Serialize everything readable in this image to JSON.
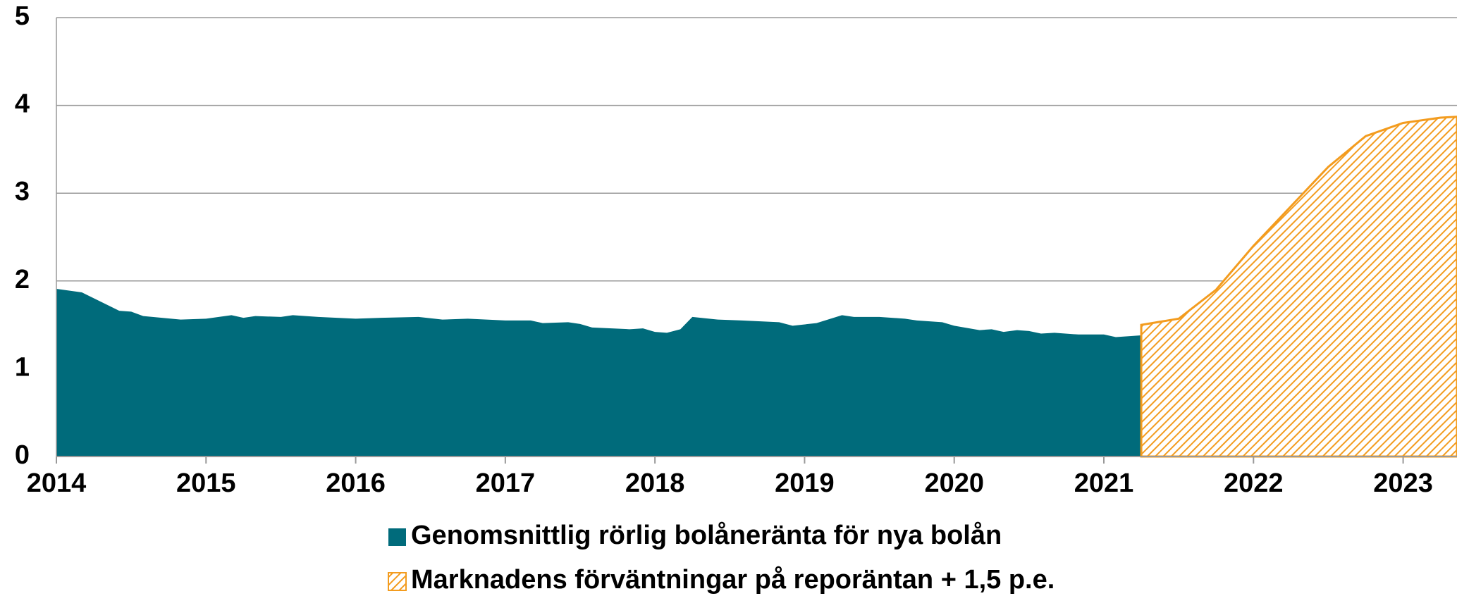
{
  "chart_data": {
    "type": "area",
    "xlim": [
      2014,
      2023.36
    ],
    "xticks": [
      2014,
      2015,
      2016,
      2017,
      2018,
      2019,
      2020,
      2021,
      2022,
      2023
    ],
    "ylim": [
      0,
      5
    ],
    "yticks": [
      0,
      1,
      2,
      3,
      4,
      5
    ],
    "grid": true,
    "series": [
      {
        "name": "Genomsnittlig rörlig bolåneränta för nya bolån",
        "color": "#006b7b",
        "pattern": "solid",
        "x": [
          2014.0,
          2014.17,
          2014.42,
          2014.5,
          2014.58,
          2014.83,
          2015.0,
          2015.17,
          2015.25,
          2015.33,
          2015.5,
          2015.58,
          2015.75,
          2016.0,
          2016.17,
          2016.42,
          2016.58,
          2016.75,
          2017.0,
          2017.17,
          2017.25,
          2017.42,
          2017.5,
          2017.58,
          2017.83,
          2017.92,
          2018.0,
          2018.08,
          2018.17,
          2018.25,
          2018.42,
          2018.58,
          2018.83,
          2018.92,
          2019.08,
          2019.25,
          2019.33,
          2019.5,
          2019.67,
          2019.75,
          2019.92,
          2020.0,
          2020.17,
          2020.25,
          2020.33,
          2020.42,
          2020.5,
          2020.58,
          2020.67,
          2020.83,
          2021.0,
          2021.08,
          2021.25
        ],
        "values": [
          1.91,
          1.87,
          1.66,
          1.65,
          1.6,
          1.56,
          1.57,
          1.61,
          1.58,
          1.6,
          1.59,
          1.61,
          1.59,
          1.57,
          1.58,
          1.59,
          1.56,
          1.57,
          1.55,
          1.55,
          1.52,
          1.53,
          1.51,
          1.47,
          1.45,
          1.46,
          1.42,
          1.41,
          1.45,
          1.59,
          1.56,
          1.55,
          1.53,
          1.49,
          1.52,
          1.61,
          1.59,
          1.59,
          1.57,
          1.55,
          1.53,
          1.49,
          1.44,
          1.45,
          1.42,
          1.44,
          1.43,
          1.4,
          1.41,
          1.39,
          1.39,
          1.36,
          1.38
        ]
      },
      {
        "name": "Marknadens förväntningar på reporäntan + 1,5 p.e.",
        "color": "#f39c1f",
        "pattern": "hatch",
        "x": [
          2021.25,
          2021.5,
          2021.75,
          2022.0,
          2022.25,
          2022.5,
          2022.75,
          2023.0,
          2023.25,
          2023.36
        ],
        "values": [
          1.5,
          1.57,
          1.9,
          2.4,
          2.85,
          3.3,
          3.65,
          3.8,
          3.86,
          3.87
        ]
      }
    ]
  }
}
